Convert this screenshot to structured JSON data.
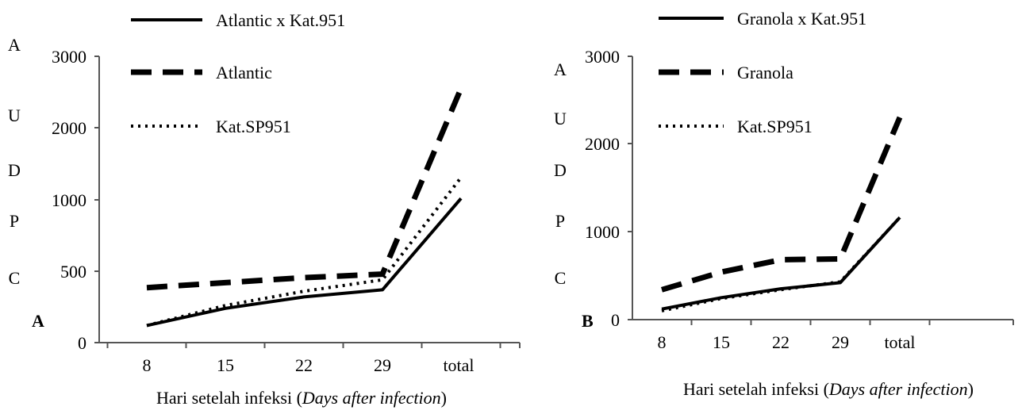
{
  "chart_data": [
    {
      "type": "line",
      "panel_label": "A",
      "ylabel_letters": [
        "A",
        "U",
        "D",
        "P",
        "C"
      ],
      "xlabel": "Hari setelah infeksi (",
      "xlabel_italic": "Days after infection",
      "xlabel_end": ")",
      "categories": [
        "8",
        "15",
        "22",
        "29",
        "total"
      ],
      "ytick_labels": [
        "0",
        "500",
        "1000",
        "2000",
        "3000"
      ],
      "ytick_values": [
        0,
        500,
        1000,
        2000,
        3000
      ],
      "ylim": [
        0,
        3000
      ],
      "legend_position": "top-left",
      "series": [
        {
          "name": "Atlantic x Kat.951",
          "style": "solid",
          "values": [
            120,
            240,
            320,
            370,
            1020
          ]
        },
        {
          "name": "Atlantic",
          "style": "dashed",
          "values": [
            385,
            420,
            455,
            480,
            2550
          ]
        },
        {
          "name": "Kat.SP951",
          "style": "dotted",
          "values": [
            120,
            260,
            360,
            440,
            1310
          ]
        }
      ]
    },
    {
      "type": "line",
      "panel_label": "B",
      "ylabel_letters": [
        "A",
        "U",
        "D",
        "P",
        "C"
      ],
      "xlabel": "Hari setelah infeksi (",
      "xlabel_italic": "Days after infection",
      "xlabel_end": ")",
      "categories": [
        "8",
        "15",
        "22",
        "29",
        "total"
      ],
      "ytick_labels": [
        "0",
        "1000",
        "2000",
        "3000"
      ],
      "ytick_values": [
        0,
        1000,
        2000,
        3000
      ],
      "ylim": [
        0,
        3000
      ],
      "legend_position": "top-left",
      "series": [
        {
          "name": "Granola x Kat.951",
          "style": "solid",
          "values": [
            120,
            250,
            350,
            420,
            1160
          ]
        },
        {
          "name": "Granola",
          "style": "dashed",
          "values": [
            340,
            540,
            680,
            690,
            2300
          ]
        },
        {
          "name": "Kat.SP951",
          "style": "dotted",
          "values": [
            100,
            240,
            340,
            430,
            1160
          ]
        }
      ]
    }
  ]
}
